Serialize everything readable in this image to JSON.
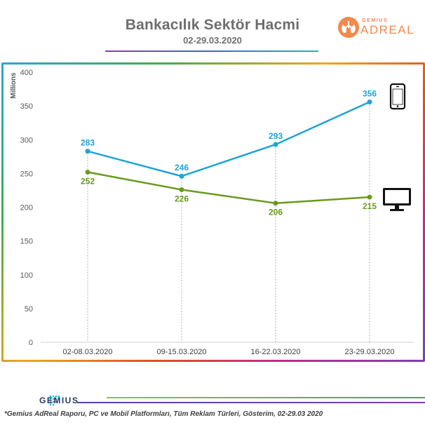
{
  "header": {
    "title": "Bankacılık Sektör Hacmi",
    "subtitle": "02-29.03.2020"
  },
  "brand": {
    "adreal_small": "GEMIUS",
    "adreal_large": "ADREAL",
    "gemius": "GEMIUS",
    "accent": "#f08a50"
  },
  "footnote": "*Gemius AdReal Raporu, PC ve Mobil Platformları, Tüm Reklam Türleri, Gösterim, 02-29.03 2020",
  "chart_data": {
    "type": "line",
    "ylabel": "Millions",
    "xlabel": "",
    "ylim": [
      0,
      400
    ],
    "yticks": [
      0,
      50,
      100,
      150,
      200,
      250,
      300,
      350,
      400
    ],
    "categories": [
      "02-08.03.2020",
      "09-15.03.2020",
      "16-22.03.2020",
      "23-29.03.2020"
    ],
    "grid": false,
    "legend": "icons at right end of each line",
    "series": [
      {
        "icon": "mobile-phone-icon",
        "color": "#1fa3d6",
        "values": [
          283,
          246,
          293,
          356
        ]
      },
      {
        "icon": "desktop-monitor-icon",
        "color": "#6a9a1f",
        "values": [
          252,
          226,
          206,
          215
        ]
      }
    ]
  }
}
